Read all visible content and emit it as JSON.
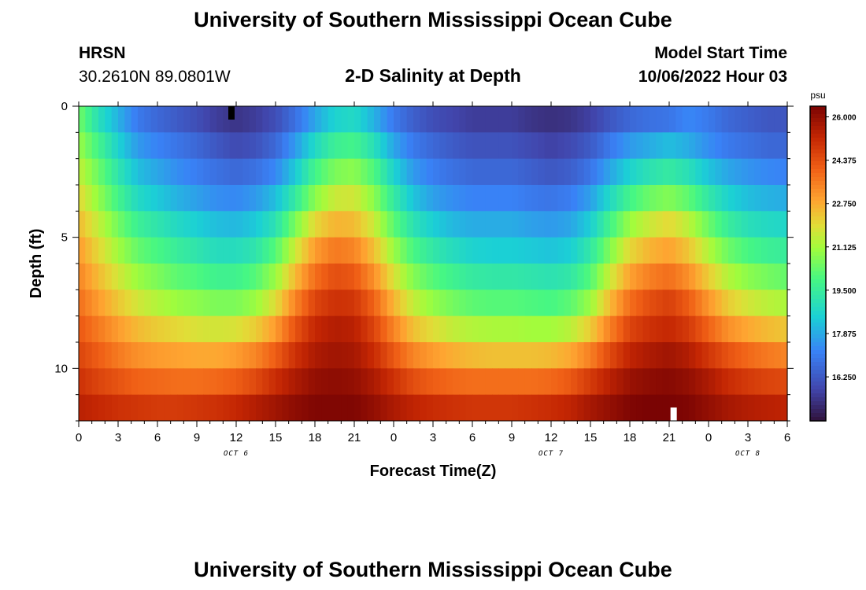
{
  "header": {
    "title": "University of Southern Mississippi Ocean Cube",
    "station": "HRSN",
    "coordinates": "30.2610N  89.0801W",
    "subtitle": "2-D Salinity at Depth",
    "model_start_label": "Model Start Time",
    "model_start_value": "10/06/2022 Hour 03"
  },
  "footer": {
    "title": "University of Southern Mississippi Ocean Cube"
  },
  "colors": {
    "low": "#2b1a4a",
    "mid": "#3c9cf6",
    "high": "#7a0403"
  },
  "chart_data": {
    "type": "heatmap",
    "title": "2-D Salinity at Depth",
    "xlabel": "Forecast Time(Z)",
    "ylabel": "Depth (ft)",
    "x_range_hours": [
      0,
      54
    ],
    "x_ticks": [
      {
        "h": 0,
        "label": "0"
      },
      {
        "h": 3,
        "label": "3"
      },
      {
        "h": 6,
        "label": "6"
      },
      {
        "h": 9,
        "label": "9"
      },
      {
        "h": 12,
        "label": "12"
      },
      {
        "h": 15,
        "label": "15"
      },
      {
        "h": 18,
        "label": "18"
      },
      {
        "h": 21,
        "label": "21"
      },
      {
        "h": 24,
        "label": "0"
      },
      {
        "h": 27,
        "label": "3"
      },
      {
        "h": 30,
        "label": "6"
      },
      {
        "h": 33,
        "label": "9"
      },
      {
        "h": 36,
        "label": "12"
      },
      {
        "h": 39,
        "label": "15"
      },
      {
        "h": 42,
        "label": "18"
      },
      {
        "h": 45,
        "label": "21"
      },
      {
        "h": 48,
        "label": "0"
      },
      {
        "h": 51,
        "label": "3"
      },
      {
        "h": 54,
        "label": "6"
      }
    ],
    "day_labels": [
      {
        "h": 12,
        "label": "OCT 6"
      },
      {
        "h": 36,
        "label": "OCT 7"
      },
      {
        "h": 51,
        "label": "OCT 8"
      }
    ],
    "y_range_ft": [
      0,
      12
    ],
    "y_ticks": [
      {
        "v": 0,
        "label": "0"
      },
      {
        "v": 5,
        "label": "5"
      },
      {
        "v": 10,
        "label": "10"
      }
    ],
    "colorbar": {
      "unit": "psu",
      "min": 14.6,
      "max": 26.4,
      "ticks": [
        "26.000",
        "24.375",
        "22.750",
        "21.125",
        "19.500",
        "17.875",
        "16.250"
      ],
      "tick_values": [
        26.0,
        24.375,
        22.75,
        21.125,
        19.5,
        17.875,
        16.25
      ]
    },
    "depth_levels_ft": [
      0.5,
      1.5,
      2.5,
      3.5,
      4.5,
      5.5,
      6.5,
      7.5,
      8.5,
      9.5,
      10.5,
      11.5
    ],
    "time_hours": [
      0,
      1.5,
      3,
      4.5,
      6,
      7.5,
      9,
      10.5,
      12,
      13.5,
      15,
      16.5,
      18,
      19.5,
      21,
      22.5,
      24,
      25.5,
      27,
      28.5,
      30,
      31.5,
      33,
      34.5,
      36,
      37.5,
      39,
      40.5,
      42,
      43.5,
      45,
      46.5,
      48,
      49.5,
      51,
      52.5,
      54
    ],
    "salinity_psu": [
      [
        20.5,
        19.0,
        18.0,
        17.0,
        16.6,
        16.3,
        16.0,
        15.6,
        15.4,
        15.6,
        16.0,
        16.8,
        17.8,
        18.6,
        18.8,
        18.0,
        17.0,
        16.4,
        16.0,
        15.8,
        15.6,
        15.6,
        15.6,
        15.4,
        15.3,
        15.4,
        15.7,
        16.2,
        16.6,
        16.8,
        16.9,
        17.3,
        17.0,
        16.6,
        16.4,
        16.2,
        16.2
      ],
      [
        21.0,
        19.8,
        18.6,
        17.6,
        17.2,
        16.9,
        16.6,
        16.2,
        15.9,
        16.1,
        16.6,
        17.6,
        18.8,
        19.6,
        19.8,
        19.0,
        17.8,
        17.0,
        16.6,
        16.3,
        16.1,
        16.1,
        16.1,
        15.9,
        15.7,
        15.9,
        16.3,
        17.0,
        17.6,
        17.9,
        18.2,
        17.9,
        17.4,
        17.0,
        16.8,
        16.6,
        16.6
      ],
      [
        21.5,
        20.4,
        19.2,
        18.2,
        17.8,
        17.4,
        17.1,
        16.8,
        16.6,
        16.8,
        17.3,
        18.4,
        19.8,
        20.6,
        20.8,
        20.0,
        18.6,
        17.6,
        17.1,
        16.8,
        16.6,
        16.6,
        16.6,
        16.4,
        16.2,
        16.4,
        16.9,
        17.8,
        18.6,
        19.1,
        19.4,
        19.0,
        18.3,
        17.8,
        17.5,
        17.3,
        17.2
      ],
      [
        22.0,
        20.9,
        19.8,
        18.8,
        18.4,
        18.0,
        17.7,
        17.4,
        17.3,
        17.6,
        18.2,
        19.4,
        20.8,
        21.6,
        21.7,
        20.8,
        19.4,
        18.3,
        17.7,
        17.4,
        17.2,
        17.2,
        17.2,
        17.0,
        16.9,
        17.1,
        17.7,
        18.8,
        19.8,
        20.4,
        20.7,
        20.2,
        19.3,
        18.6,
        18.2,
        18.0,
        17.9
      ],
      [
        22.5,
        21.5,
        20.5,
        19.6,
        19.2,
        18.8,
        18.5,
        18.2,
        18.1,
        18.4,
        19.1,
        20.6,
        22.0,
        22.6,
        22.5,
        21.6,
        20.2,
        19.1,
        18.5,
        18.1,
        17.9,
        17.9,
        17.9,
        17.7,
        17.6,
        17.8,
        18.5,
        19.8,
        21.0,
        21.6,
        22.0,
        21.4,
        20.4,
        19.5,
        19.0,
        18.8,
        18.7
      ],
      [
        23.0,
        22.0,
        21.1,
        20.3,
        19.9,
        19.5,
        19.2,
        18.9,
        18.9,
        19.2,
        20.1,
        21.6,
        23.0,
        23.6,
        23.4,
        22.4,
        21.0,
        19.9,
        19.3,
        18.9,
        18.6,
        18.5,
        18.5,
        18.4,
        18.3,
        18.5,
        19.3,
        20.7,
        22.0,
        22.6,
        22.9,
        22.3,
        21.3,
        20.4,
        19.9,
        19.6,
        19.5
      ],
      [
        23.4,
        22.5,
        21.7,
        21.0,
        20.6,
        20.2,
        20.0,
        19.7,
        19.7,
        20.1,
        21.0,
        22.5,
        23.8,
        24.4,
        24.2,
        23.2,
        21.8,
        20.7,
        20.1,
        19.7,
        19.4,
        19.3,
        19.3,
        19.2,
        19.1,
        19.3,
        20.1,
        21.6,
        22.9,
        23.5,
        23.8,
        23.2,
        22.2,
        21.3,
        20.8,
        20.5,
        20.3
      ],
      [
        23.8,
        23.0,
        22.3,
        21.7,
        21.3,
        21.0,
        20.8,
        20.6,
        20.6,
        21.0,
        21.9,
        23.4,
        24.6,
        25.0,
        24.9,
        24.0,
        22.6,
        21.5,
        20.9,
        20.5,
        20.2,
        20.1,
        20.1,
        20.0,
        19.9,
        20.2,
        21.0,
        22.5,
        23.8,
        24.4,
        24.7,
        24.1,
        23.1,
        22.2,
        21.7,
        21.4,
        21.2
      ],
      [
        24.2,
        23.6,
        23.0,
        22.5,
        22.2,
        22.0,
        21.8,
        21.7,
        21.8,
        22.2,
        23.0,
        24.3,
        25.2,
        25.5,
        25.4,
        24.6,
        23.4,
        22.4,
        21.9,
        21.5,
        21.3,
        21.2,
        21.2,
        21.1,
        21.1,
        21.4,
        22.2,
        23.5,
        24.6,
        25.0,
        25.2,
        24.8,
        24.0,
        23.2,
        22.8,
        22.5,
        22.3
      ],
      [
        24.6,
        24.1,
        23.6,
        23.2,
        23.0,
        22.9,
        22.8,
        22.8,
        23.0,
        23.4,
        24.1,
        25.0,
        25.6,
        25.8,
        25.7,
        25.1,
        24.2,
        23.4,
        23.0,
        22.7,
        22.5,
        22.4,
        22.4,
        22.4,
        22.5,
        22.8,
        23.5,
        24.5,
        25.3,
        25.6,
        25.8,
        25.5,
        24.9,
        24.3,
        23.9,
        23.6,
        23.4
      ],
      [
        25.0,
        24.6,
        24.3,
        24.0,
        23.9,
        23.8,
        23.8,
        23.9,
        24.1,
        24.5,
        25.1,
        25.6,
        26.0,
        26.1,
        26.0,
        25.6,
        25.0,
        24.4,
        24.1,
        23.9,
        23.8,
        23.8,
        23.8,
        23.8,
        23.9,
        24.2,
        24.8,
        25.4,
        25.9,
        26.1,
        26.2,
        26.0,
        25.6,
        25.1,
        24.8,
        24.6,
        24.5
      ],
      [
        25.4,
        25.2,
        25.0,
        24.9,
        24.8,
        24.8,
        24.9,
        25.0,
        25.2,
        25.5,
        25.8,
        26.1,
        26.3,
        26.3,
        26.3,
        26.0,
        25.6,
        25.3,
        25.1,
        25.0,
        24.9,
        24.9,
        24.9,
        25.0,
        25.1,
        25.3,
        25.7,
        26.0,
        26.3,
        26.4,
        26.4,
        26.3,
        26.0,
        25.7,
        25.5,
        25.4,
        25.3
      ]
    ]
  }
}
